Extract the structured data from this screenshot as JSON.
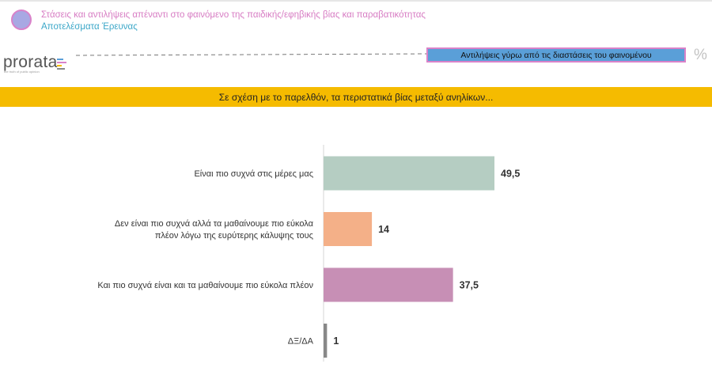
{
  "header": {
    "title": "Στάσεις και αντιλήψεις απέναντι στο φαινόμενο της παιδικής/εφηβικής βίας και παραβατικότητας",
    "subtitle": "Αποτελέσματα Έρευνας"
  },
  "logo": {
    "name": "prorata",
    "tagline": "the truth of public opinion"
  },
  "topic_badge": "Αντιλήψεις γύρω από τις διαστάσεις του φαινομένου",
  "percent_symbol": "%",
  "question_banner": "Σε σχέση με το παρελθόν, τα περιστατικά βίας μεταξύ ανηλίκων...",
  "colors": {
    "title": "#d77cc3",
    "subtitle": "#3ba7c8",
    "banner": "#f5bb00",
    "badge": "#5a9fd8",
    "badge_border": "#d982c9"
  },
  "chart_data": {
    "type": "bar",
    "orientation": "horizontal",
    "unit": "%",
    "categories": [
      [
        "Είναι πιο συχνά στις μέρες μας"
      ],
      [
        "Δεν είναι πιο συχνά αλλά τα μαθαίνουμε πιο εύκολα",
        "πλέον λόγω της ευρύτερης κάλυψης τους"
      ],
      [
        "Και πιο συχνά είναι και τα μαθαίνουμε πιο εύκολα πλέον"
      ],
      [
        "ΔΞ/ΔΑ"
      ]
    ],
    "values": [
      49.5,
      14,
      37.5,
      1
    ],
    "value_labels": [
      "49,5",
      "14",
      "37,5",
      "1"
    ],
    "colors": [
      "#b5cdc2",
      "#f4b088",
      "#c78fb5",
      "#888888"
    ],
    "xlim": [
      0,
      60
    ],
    "grid": false
  }
}
